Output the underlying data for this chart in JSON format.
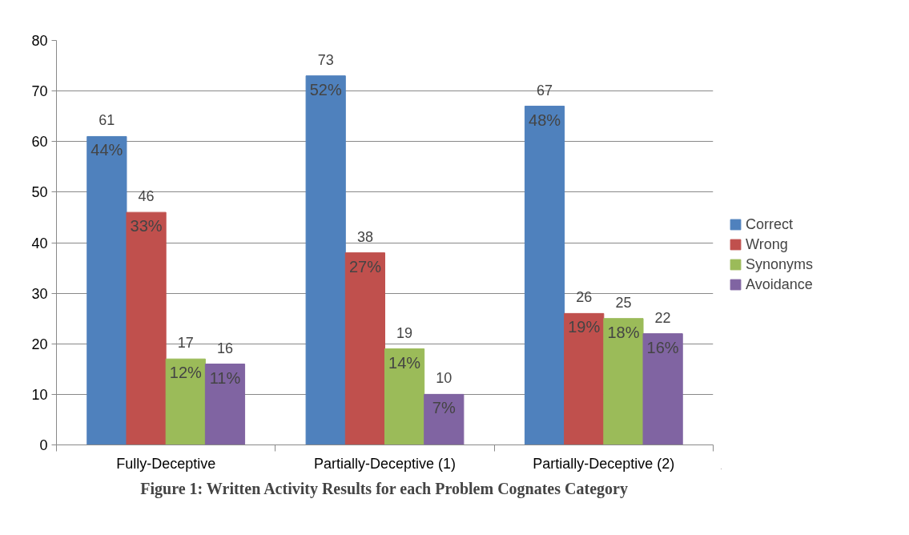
{
  "chart_data": {
    "type": "bar",
    "categories": [
      "Fully-Deceptive",
      "Partially-Deceptive (1)",
      "Partially-Deceptive (2)"
    ],
    "series": [
      {
        "name": "Correct",
        "color": "#4f81bd",
        "values": [
          61,
          73,
          67
        ]
      },
      {
        "name": "Wrong",
        "color": "#c0504d",
        "values": [
          46,
          38,
          26
        ]
      },
      {
        "name": "Synonyms",
        "color": "#9bbb59",
        "values": [
          17,
          19,
          25
        ]
      },
      {
        "name": "Avoidance",
        "color": "#8064a2",
        "values": [
          16,
          10,
          22
        ]
      }
    ],
    "ylim": [
      0,
      80
    ],
    "yticks": [
      0,
      10,
      20,
      30,
      40,
      50,
      60,
      70,
      80
    ],
    "grid": "y",
    "legend": "right",
    "data_labels": true,
    "annotations": [
      "44%",
      "33%",
      "12%",
      "11%",
      "52%",
      "27%",
      "14%",
      "7%",
      "48%",
      "19%",
      "18%",
      "16%",
      "Figure 1: Written Activity Results for each Problem Cognates Category"
    ]
  }
}
